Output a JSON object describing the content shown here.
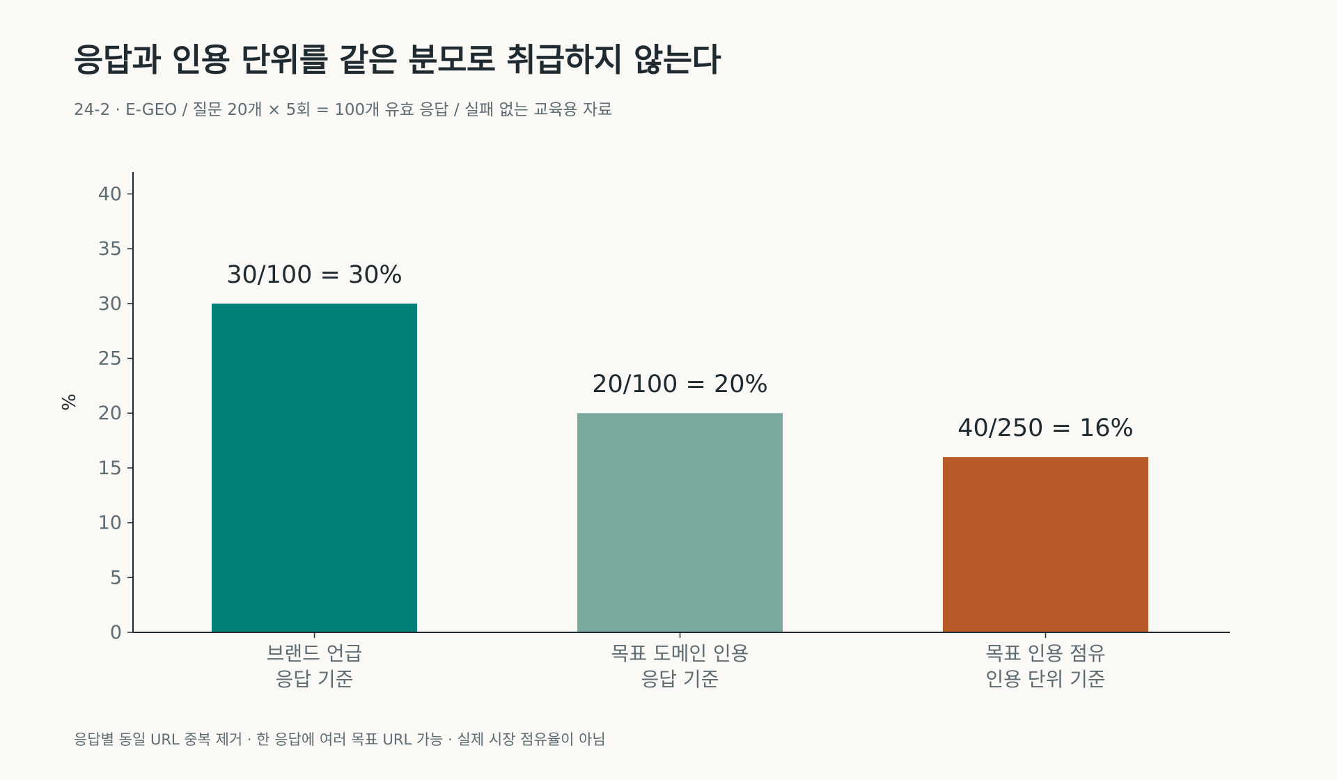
{
  "title": "응답과 인용 단위를 같은 분모로 취급하지 않는다",
  "subtitle": "24-2 · E-GEO / 질문 20개 × 5회 = 100개 유효 응답 / 실패 없는 교육용 자료",
  "footnote": "응답별 동일 URL 중복 제거 · 한 응답에 여러 목표 URL 가능 · 실제 시장 점유율이 아님",
  "chart_data": {
    "type": "bar",
    "title": "응답과 인용 단위를 같은 분모로 취급하지 않는다",
    "xlabel": "",
    "ylabel": "%",
    "ylim": [
      0,
      42
    ],
    "yticks": [
      0,
      5,
      10,
      15,
      20,
      25,
      30,
      35,
      40
    ],
    "grid": false,
    "categories": [
      [
        "브랜드 언급",
        "응답 기준"
      ],
      [
        "목표 도메인 인용",
        "응답 기준"
      ],
      [
        "목표 인용 점유",
        "인용 단위 기준"
      ]
    ],
    "values": [
      30,
      20,
      16
    ],
    "data_labels": [
      "30/100 = 30%",
      "20/100 = 20%",
      "40/250 = 16%"
    ],
    "colors": [
      "#007f79",
      "#79a99f",
      "#b85a27"
    ]
  }
}
